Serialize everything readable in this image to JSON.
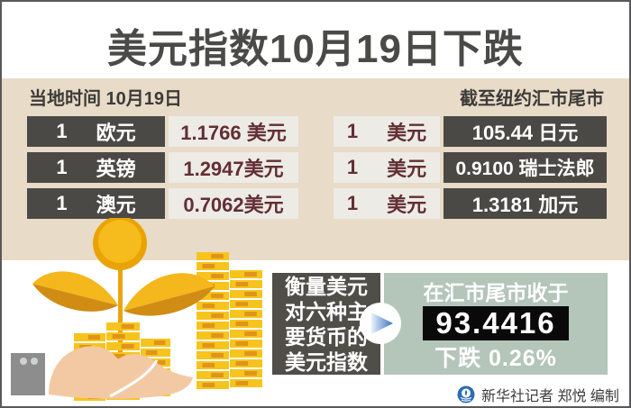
{
  "title": "美元指数10月19日下跌",
  "panel": {
    "local_time": "当地时间 10月19日",
    "cutoff": "截至纽约汇市尾市"
  },
  "rates": {
    "left": [
      {
        "qty": "1",
        "currency": "欧元",
        "value": "1.1766 美元"
      },
      {
        "qty": "1",
        "currency": "英镑",
        "value": "1.2947美元"
      },
      {
        "qty": "1",
        "currency": "澳元",
        "value": "0.7062美元"
      }
    ],
    "right": [
      {
        "qty": "1",
        "currency": "美元",
        "value": "105.44 日元"
      },
      {
        "qty": "1",
        "currency": "美元",
        "value": "0.9100 瑞士法郎"
      },
      {
        "qty": "1",
        "currency": "美元",
        "value": "1.3181 加元"
      }
    ]
  },
  "summary": {
    "label_lines": [
      "衡量美元",
      "对六种主",
      "要货币的",
      "美元指数"
    ],
    "close_prefix": "在汇市尾市收于",
    "index_value": "93.4416",
    "change": "下跌 0.26%"
  },
  "credit": {
    "logo": "xinhua-logo",
    "text": "新华社记者 郑悦 编制"
  },
  "icons": {
    "arrow": "arrow-right-icon",
    "illustration": "hand-holding-coin-plant"
  },
  "colors": {
    "frame_border": "#59595b",
    "panel_beige": "#e8dbc7",
    "box_dark": "#4b4945",
    "box_light": "#edebe6",
    "text_maroon": "#632e33",
    "summary_green": "#b4c5b9",
    "index_black": "#0a0a0a",
    "gold": "#f2b21b",
    "arrow_blue": "#3b6fc4",
    "hand_skin": "#f3c9a4"
  },
  "chart_data": {
    "type": "table",
    "title": "美元指数10月19日下跌",
    "date_note": "当地时间 10月19日",
    "cutoff_note": "截至纽约汇市尾市",
    "exchange_rates": [
      {
        "base_amount": 1,
        "base_currency": "欧元",
        "quote_value": 1.1766,
        "quote_currency": "美元"
      },
      {
        "base_amount": 1,
        "base_currency": "英镑",
        "quote_value": 1.2947,
        "quote_currency": "美元"
      },
      {
        "base_amount": 1,
        "base_currency": "澳元",
        "quote_value": 0.7062,
        "quote_currency": "美元"
      },
      {
        "base_amount": 1,
        "base_currency": "美元",
        "quote_value": 105.44,
        "quote_currency": "日元"
      },
      {
        "base_amount": 1,
        "base_currency": "美元",
        "quote_value": 0.91,
        "quote_currency": "瑞士法郎"
      },
      {
        "base_amount": 1,
        "base_currency": "美元",
        "quote_value": 1.3181,
        "quote_currency": "加元"
      }
    ],
    "dollar_index": {
      "close": 93.4416,
      "change_percent": -0.26,
      "direction": "下跌",
      "description": "衡量美元对六种主要货币的美元指数"
    }
  }
}
